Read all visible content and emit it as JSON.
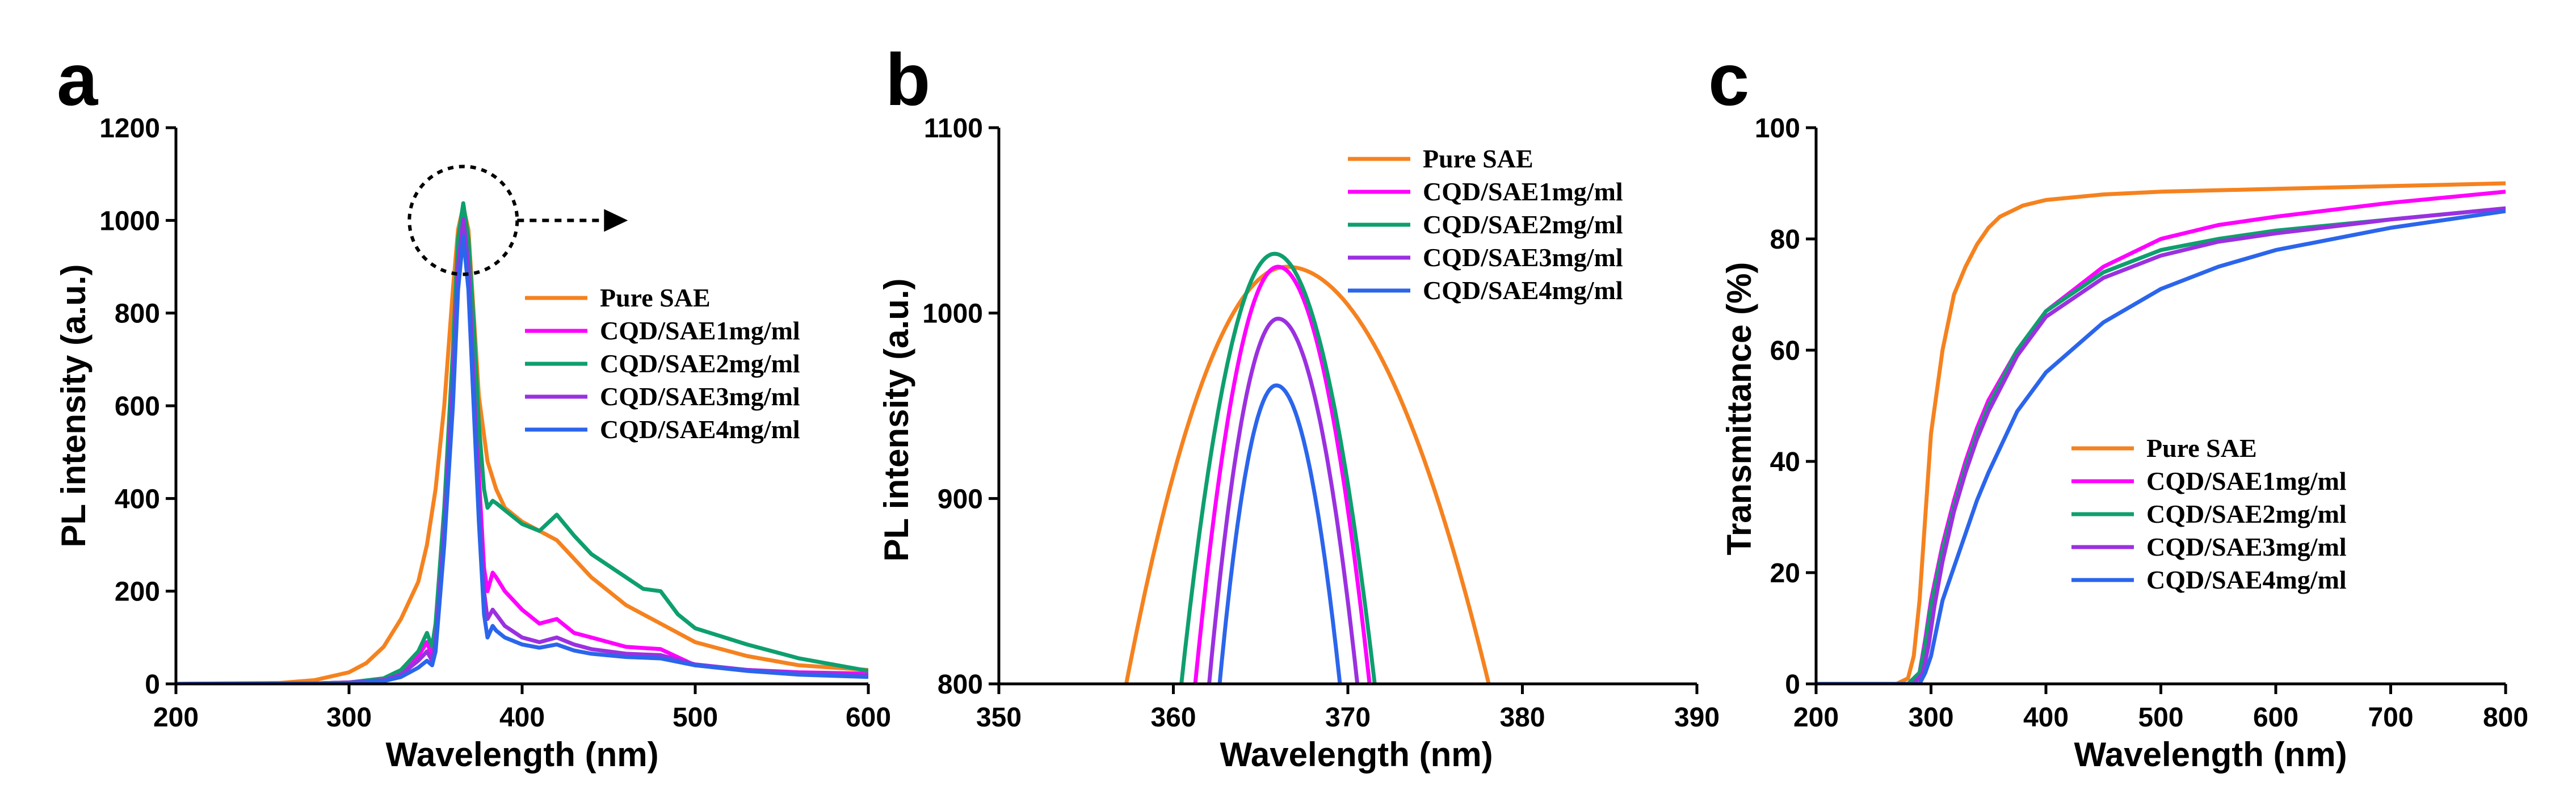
{
  "colors": {
    "pure_sae": "#F5821F",
    "cqd1": "#FF00FF",
    "cqd2": "#0E9F6E",
    "cqd3": "#9B30E0",
    "cqd4": "#2B65EC",
    "axis": "#000000"
  },
  "chart_data": [
    {
      "panel": "a",
      "type": "line",
      "xlabel": "Wavelength (nm)",
      "ylabel": "PL intensity (a.u.)",
      "xlim": [
        200,
        600
      ],
      "ylim": [
        0,
        1200
      ],
      "xticks": [
        200,
        300,
        400,
        500,
        600
      ],
      "yticks": [
        0,
        200,
        400,
        600,
        800,
        1000,
        1200
      ],
      "legend_position": "center-right",
      "annotation": "dashed circle around peak with arrow pointing to panel b",
      "series": [
        {
          "name": "Pure SAE",
          "color_key": "pure_sae",
          "x": [
            200,
            260,
            280,
            300,
            310,
            320,
            330,
            340,
            345,
            350,
            355,
            360,
            363,
            366,
            369,
            372,
            375,
            380,
            385,
            390,
            400,
            420,
            440,
            460,
            480,
            500,
            530,
            560,
            600
          ],
          "y": [
            0,
            2,
            8,
            25,
            45,
            80,
            140,
            220,
            300,
            420,
            600,
            850,
            980,
            1030,
            980,
            800,
            620,
            480,
            420,
            380,
            350,
            310,
            230,
            170,
            130,
            90,
            60,
            40,
            30
          ]
        },
        {
          "name": "CQD/SAE1mg/ml",
          "color_key": "cqd1",
          "x": [
            200,
            280,
            300,
            320,
            330,
            340,
            345,
            348,
            350,
            355,
            360,
            363,
            366,
            369,
            372,
            375,
            378,
            380,
            383,
            385,
            390,
            400,
            410,
            420,
            430,
            440,
            460,
            480,
            500,
            530,
            560,
            600
          ],
          "y": [
            0,
            1,
            3,
            10,
            25,
            60,
            90,
            60,
            100,
            350,
            700,
            950,
            1030,
            950,
            700,
            450,
            250,
            200,
            240,
            230,
            200,
            160,
            130,
            140,
            110,
            100,
            80,
            75,
            40,
            30,
            25,
            22
          ]
        },
        {
          "name": "CQD/SAE2mg/ml",
          "color_key": "cqd2",
          "x": [
            200,
            280,
            300,
            320,
            330,
            340,
            345,
            348,
            350,
            355,
            360,
            363,
            366,
            369,
            372,
            375,
            378,
            380,
            383,
            385,
            390,
            400,
            410,
            420,
            430,
            440,
            460,
            470,
            480,
            490,
            500,
            530,
            560,
            600
          ],
          "y": [
            0,
            1,
            3,
            12,
            30,
            70,
            110,
            80,
            130,
            380,
            720,
            960,
            1037,
            960,
            780,
            560,
            420,
            380,
            395,
            390,
            375,
            345,
            330,
            365,
            320,
            280,
            230,
            205,
            200,
            150,
            120,
            85,
            55,
            28
          ]
        },
        {
          "name": "CQD/SAE3mg/ml",
          "color_key": "cqd3",
          "x": [
            200,
            280,
            300,
            320,
            330,
            340,
            345,
            348,
            350,
            355,
            360,
            363,
            366,
            369,
            372,
            375,
            378,
            380,
            383,
            385,
            390,
            400,
            410,
            420,
            430,
            440,
            460,
            480,
            500,
            530,
            560,
            600
          ],
          "y": [
            0,
            1,
            3,
            8,
            20,
            50,
            70,
            50,
            90,
            330,
            650,
            900,
            1002,
            900,
            650,
            400,
            200,
            140,
            160,
            150,
            125,
            100,
            90,
            100,
            85,
            75,
            65,
            62,
            42,
            30,
            24,
            18
          ]
        },
        {
          "name": "CQD/SAE4mg/ml",
          "color_key": "cqd4",
          "x": [
            200,
            280,
            300,
            320,
            330,
            340,
            345,
            348,
            350,
            355,
            360,
            363,
            366,
            369,
            372,
            375,
            378,
            380,
            383,
            385,
            390,
            400,
            410,
            420,
            430,
            440,
            460,
            480,
            500,
            530,
            560,
            600
          ],
          "y": [
            0,
            1,
            2,
            6,
            15,
            35,
            50,
            40,
            70,
            300,
            600,
            850,
            966,
            850,
            600,
            350,
            150,
            100,
            125,
            115,
            100,
            85,
            78,
            85,
            72,
            65,
            58,
            55,
            40,
            28,
            20,
            15
          ]
        }
      ]
    },
    {
      "panel": "b",
      "type": "line",
      "xlabel": "Wavelength (nm)",
      "ylabel": "PL intensity (a.u.)",
      "xlim": [
        350,
        390
      ],
      "ylim": [
        800,
        1100
      ],
      "xticks": [
        350,
        360,
        370,
        380,
        390
      ],
      "yticks": [
        800,
        900,
        1000,
        1100
      ],
      "legend_position": "top-right",
      "series": [
        {
          "name": "Pure SAE",
          "color_key": "pure_sae",
          "peak_x": 366.5,
          "peak_y": 1030,
          "left_x": 357.2,
          "right_x": 378.2
        },
        {
          "name": "CQD/SAE1mg/ml",
          "color_key": "cqd1",
          "peak_x": 366.0,
          "peak_y": 1030,
          "left_x": 361.2,
          "right_x": 371.3
        },
        {
          "name": "CQD/SAE2mg/ml",
          "color_key": "cqd2",
          "peak_x": 365.8,
          "peak_y": 1037,
          "left_x": 360.4,
          "right_x": 371.6
        },
        {
          "name": "CQD/SAE3mg/ml",
          "color_key": "cqd3",
          "peak_x": 366.0,
          "peak_y": 1002,
          "left_x": 362.0,
          "right_x": 370.6
        },
        {
          "name": "CQD/SAE4mg/ml",
          "color_key": "cqd4",
          "peak_x": 365.9,
          "peak_y": 966,
          "left_x": 362.6,
          "right_x": 369.6
        }
      ]
    },
    {
      "panel": "c",
      "type": "line",
      "xlabel": "Wavelength (nm)",
      "ylabel": "Transmittance (%)",
      "xlim": [
        200,
        800
      ],
      "ylim": [
        0,
        100
      ],
      "xticks": [
        200,
        300,
        400,
        500,
        600,
        700,
        800
      ],
      "yticks": [
        0,
        20,
        40,
        60,
        80,
        100
      ],
      "legend_position": "bottom-right",
      "series": [
        {
          "name": "Pure SAE",
          "color_key": "pure_sae",
          "x": [
            200,
            270,
            280,
            285,
            290,
            295,
            300,
            310,
            320,
            330,
            340,
            350,
            360,
            380,
            400,
            450,
            500,
            600,
            700,
            800
          ],
          "y": [
            0,
            0,
            1,
            5,
            15,
            30,
            45,
            60,
            70,
            75,
            79,
            82,
            84,
            86,
            87,
            88,
            88.5,
            89,
            89.5,
            90
          ]
        },
        {
          "name": "CQD/SAE1mg/ml",
          "color_key": "cqd1",
          "x": [
            200,
            280,
            290,
            295,
            300,
            310,
            320,
            330,
            340,
            350,
            375,
            400,
            450,
            500,
            550,
            600,
            700,
            800
          ],
          "y": [
            0,
            0,
            2,
            8,
            15,
            25,
            33,
            40,
            46,
            51,
            60,
            67,
            75,
            80,
            82.5,
            84,
            86.5,
            88.5
          ]
        },
        {
          "name": "CQD/SAE2mg/ml",
          "color_key": "cqd2",
          "x": [
            200,
            280,
            290,
            295,
            300,
            310,
            320,
            330,
            340,
            350,
            375,
            400,
            450,
            500,
            550,
            600,
            700,
            800
          ],
          "y": [
            0,
            0,
            2,
            7,
            14,
            24,
            32,
            39,
            45,
            50,
            60,
            67,
            74,
            78,
            80,
            81.5,
            83.5,
            85.5
          ]
        },
        {
          "name": "CQD/SAE3mg/ml",
          "color_key": "cqd3",
          "x": [
            200,
            285,
            293,
            298,
            303,
            310,
            320,
            330,
            340,
            350,
            375,
            400,
            450,
            500,
            550,
            600,
            700,
            800
          ],
          "y": [
            0,
            0,
            2,
            7,
            14,
            22,
            31,
            38,
            44,
            49,
            59,
            66,
            73,
            77,
            79.5,
            81,
            83.5,
            85.5
          ]
        },
        {
          "name": "CQD/SAE4mg/ml",
          "color_key": "cqd4",
          "x": [
            200,
            290,
            295,
            300,
            305,
            310,
            320,
            330,
            340,
            350,
            375,
            400,
            450,
            500,
            550,
            600,
            700,
            800
          ],
          "y": [
            0,
            0,
            2,
            5,
            10,
            15,
            21,
            27,
            33,
            38,
            49,
            56,
            65,
            71,
            75,
            78,
            82,
            85
          ]
        }
      ]
    }
  ],
  "panels": {
    "a": {
      "letter": "a"
    },
    "b": {
      "letter": "b"
    },
    "c": {
      "letter": "c"
    }
  }
}
